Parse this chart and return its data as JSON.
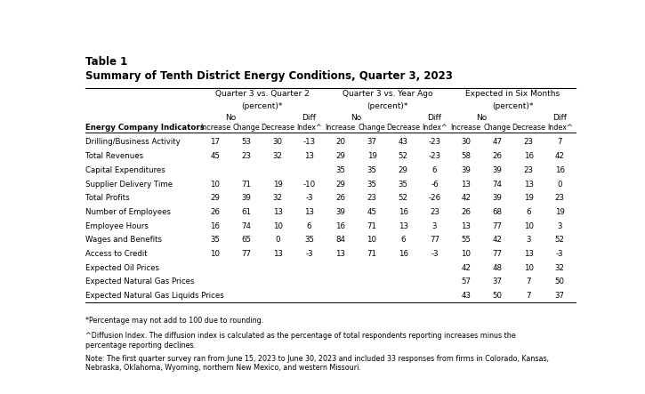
{
  "title_line1": "Table 1",
  "title_line2": "Summary of Tenth District Energy Conditions, Quarter 3, 2023",
  "rows": [
    {
      "label": "Drilling/Business Activity",
      "q3q2": [
        17,
        53,
        30,
        -13
      ],
      "q3ya": [
        20,
        37,
        43,
        -23
      ],
      "exp": [
        30,
        47,
        23,
        7
      ]
    },
    {
      "label": "Total Revenues",
      "q3q2": [
        45,
        23,
        32,
        13
      ],
      "q3ya": [
        29,
        19,
        52,
        -23
      ],
      "exp": [
        58,
        26,
        16,
        42
      ]
    },
    {
      "label": "Capital Expenditures",
      "q3q2": [
        null,
        null,
        null,
        null
      ],
      "q3ya": [
        35,
        35,
        29,
        6
      ],
      "exp": [
        39,
        39,
        23,
        16
      ]
    },
    {
      "label": "Supplier Delivery Time",
      "q3q2": [
        10,
        71,
        19,
        -10
      ],
      "q3ya": [
        29,
        35,
        35,
        -6
      ],
      "exp": [
        13,
        74,
        13,
        0
      ]
    },
    {
      "label": "Total Profits",
      "q3q2": [
        29,
        39,
        32,
        -3
      ],
      "q3ya": [
        26,
        23,
        52,
        -26
      ],
      "exp": [
        42,
        39,
        19,
        23
      ]
    },
    {
      "label": "Number of Employees",
      "q3q2": [
        26,
        61,
        13,
        13
      ],
      "q3ya": [
        39,
        45,
        16,
        23
      ],
      "exp": [
        26,
        68,
        6,
        19
      ]
    },
    {
      "label": "Employee Hours",
      "q3q2": [
        16,
        74,
        10,
        6
      ],
      "q3ya": [
        16,
        71,
        13,
        3
      ],
      "exp": [
        13,
        77,
        10,
        3
      ]
    },
    {
      "label": "Wages and Benefits",
      "q3q2": [
        35,
        65,
        0,
        35
      ],
      "q3ya": [
        84,
        10,
        6,
        77
      ],
      "exp": [
        55,
        42,
        3,
        52
      ]
    },
    {
      "label": "Access to Credit",
      "q3q2": [
        10,
        77,
        13,
        -3
      ],
      "q3ya": [
        13,
        71,
        16,
        -3
      ],
      "exp": [
        10,
        77,
        13,
        -3
      ]
    },
    {
      "label": "Expected Oil Prices",
      "q3q2": [
        null,
        null,
        null,
        null
      ],
      "q3ya": [
        null,
        null,
        null,
        null
      ],
      "exp": [
        42,
        48,
        10,
        32
      ]
    },
    {
      "label": "Expected Natural Gas Prices",
      "q3q2": [
        null,
        null,
        null,
        null
      ],
      "q3ya": [
        null,
        null,
        null,
        null
      ],
      "exp": [
        57,
        37,
        7,
        50
      ]
    },
    {
      "label": "Expected Natural Gas Liquids Prices",
      "q3q2": [
        null,
        null,
        null,
        null
      ],
      "q3ya": [
        null,
        null,
        null,
        null
      ],
      "exp": [
        43,
        50,
        7,
        37
      ]
    }
  ],
  "footnote1": "*Percentage may not add to 100 due to rounding.",
  "footnote2": "^Diffusion Index. The diffusion index is calculated as the percentage of total respondents reporting increases minus the\npercentage reporting declines.",
  "footnote3": "Note: The first quarter survey ran from June 15, 2023 to June 30, 2023 and included 33 responses from firms in Colorado, Kansas,\nNebraska, Oklahoma, Wyoming, northern New Mexico, and western Missouri.",
  "bg_color": "#ffffff",
  "text_color": "#000000"
}
